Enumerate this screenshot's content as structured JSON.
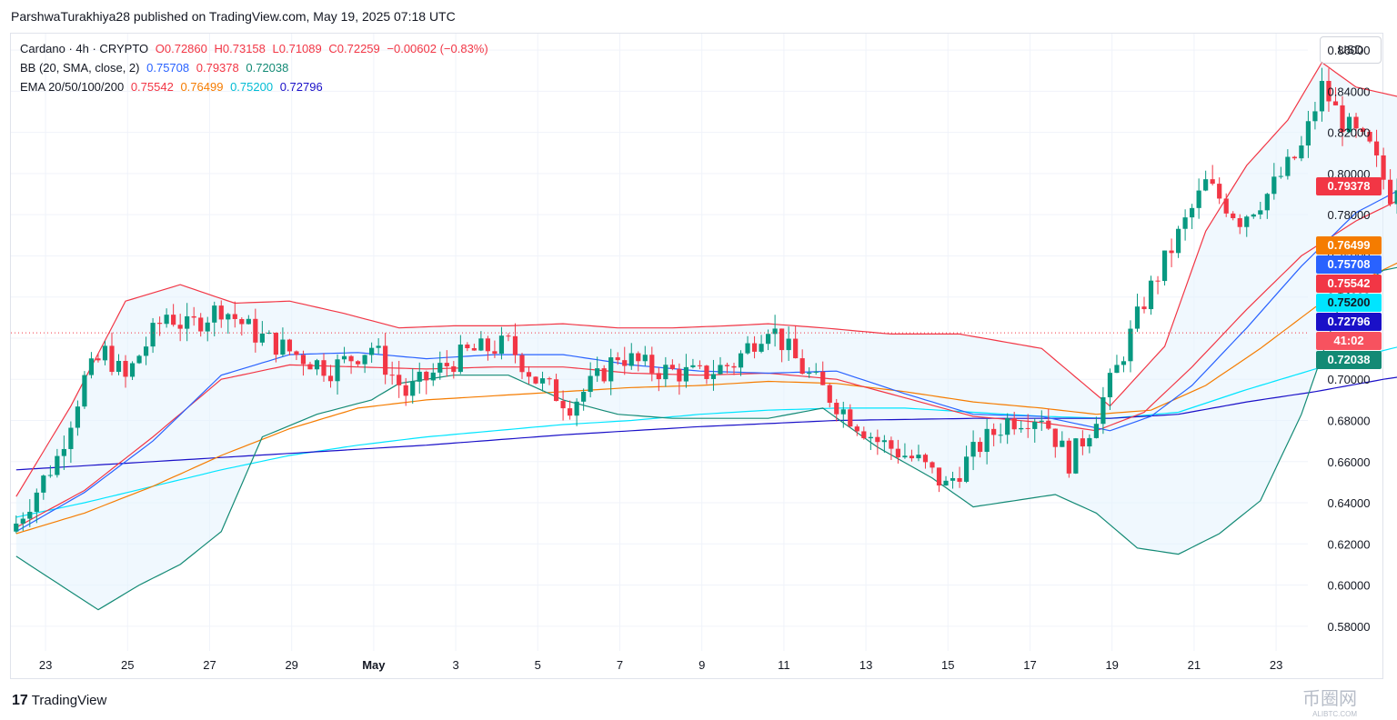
{
  "publisher_line": "ParshwaTurakhiya28 published on TradingView.com, May 19, 2025 07:18 UTC",
  "legend": {
    "symbol": "Cardano · 4h · CRYPTO",
    "open": "O0.72860",
    "high": "H0.73158",
    "low": "L0.71089",
    "close": "C0.72259",
    "change": "−0.00602 (−0.83%)",
    "bb_label": "BB (20, SMA, close, 2)",
    "bb_values": [
      "0.75708",
      "0.79378",
      "0.72038"
    ],
    "ema_label": "EMA 20/50/100/200",
    "ema_values": [
      "0.75542",
      "0.76499",
      "0.75200",
      "0.72796"
    ]
  },
  "currency": "USD",
  "price_labels": [
    {
      "text": "0.79378",
      "value": 0.79378,
      "color": "#f23645"
    },
    {
      "text": "0.76499",
      "value": 0.76499,
      "color": "#f57c00"
    },
    {
      "text": "0.75708",
      "value": 0.75708,
      "color": "#2962ff"
    },
    {
      "text": "0.75542",
      "value": 0.75542,
      "color": "#f23645"
    },
    {
      "text": "0.75200",
      "value": 0.752,
      "color": "#00e5ff"
    },
    {
      "text": "0.72796",
      "value": 0.72796,
      "color": "#1a10c8"
    },
    {
      "text": "41:02",
      "value": 0.72259,
      "color": "#f7525f"
    },
    {
      "text": "0.72038",
      "value": 0.72038,
      "color": "#138a75"
    }
  ],
  "branding": "TradingView",
  "watermark": {
    "text": "币圈网",
    "sub": "ALIBTC.COM"
  },
  "colors": {
    "up": "#089981",
    "down": "#f23645",
    "bb_basis": "#2962ff",
    "bb_upper": "#f23645",
    "bb_lower": "#138a75",
    "ema20": "#f23645",
    "ema50": "#f57c00",
    "ema100": "#00e5ff",
    "ema200": "#1a10c8",
    "grid": "#f0f3fa",
    "band_fill": "#e3f2fd"
  },
  "chart_data": {
    "type": "candlestick",
    "ylim": [
      0.568,
      0.868
    ],
    "y_ticks": [
      "0.86000",
      "0.84000",
      "0.82000",
      "0.80000",
      "0.78000",
      "0.76000",
      "0.74000",
      "0.72000",
      "0.70000",
      "0.68000",
      "0.66000",
      "0.64000",
      "0.62000",
      "0.60000",
      "0.58000"
    ],
    "y_tick_values": [
      0.86,
      0.84,
      0.82,
      0.8,
      0.78,
      0.76,
      0.74,
      0.72,
      0.7,
      0.68,
      0.66,
      0.64,
      0.62,
      0.6,
      0.58
    ],
    "x_ticks": [
      "23",
      "25",
      "27",
      "29",
      "May",
      "3",
      "5",
      "7",
      "9",
      "11",
      "13",
      "15",
      "17",
      "19",
      "21",
      "23"
    ],
    "x_tick_days": [
      -8,
      -6,
      -4,
      -2,
      0,
      2,
      4,
      6,
      8,
      10,
      12,
      14,
      16,
      18,
      20,
      22
    ],
    "x_start_day": -8.8,
    "candles_per_day": 6,
    "current_price": 0.72259,
    "close_path": [
      [
        0,
        0.63
      ],
      [
        6,
        0.662
      ],
      [
        10,
        0.7
      ],
      [
        13,
        0.713
      ],
      [
        16,
        0.7
      ],
      [
        18,
        0.712
      ],
      [
        22,
        0.732
      ],
      [
        25,
        0.725
      ],
      [
        30,
        0.735
      ],
      [
        35,
        0.722
      ],
      [
        41,
        0.712
      ],
      [
        46,
        0.705
      ],
      [
        52,
        0.716
      ],
      [
        57,
        0.693
      ],
      [
        62,
        0.705
      ],
      [
        66,
        0.713
      ],
      [
        72,
        0.717
      ],
      [
        76,
        0.7
      ],
      [
        81,
        0.688
      ],
      [
        85,
        0.7
      ],
      [
        88,
        0.712
      ],
      [
        93,
        0.705
      ],
      [
        100,
        0.702
      ],
      [
        105,
        0.708
      ],
      [
        110,
        0.727
      ],
      [
        115,
        0.705
      ],
      [
        121,
        0.685
      ],
      [
        126,
        0.67
      ],
      [
        132,
        0.66
      ],
      [
        136,
        0.648
      ],
      [
        141,
        0.668
      ],
      [
        145,
        0.68
      ],
      [
        150,
        0.683
      ],
      [
        154,
        0.66
      ],
      [
        157,
        0.676
      ],
      [
        161,
        0.705
      ],
      [
        165,
        0.738
      ],
      [
        170,
        0.77
      ],
      [
        174,
        0.795
      ],
      [
        179,
        0.778
      ],
      [
        183,
        0.79
      ],
      [
        188,
        0.812
      ],
      [
        191,
        0.842
      ],
      [
        194,
        0.825
      ],
      [
        198,
        0.812
      ],
      [
        201,
        0.79
      ],
      [
        205,
        0.815
      ],
      [
        210,
        0.832
      ],
      [
        215,
        0.81
      ],
      [
        219,
        0.78
      ],
      [
        223,
        0.79
      ],
      [
        228,
        0.815
      ],
      [
        231,
        0.832
      ],
      [
        234,
        0.82
      ],
      [
        238,
        0.808
      ],
      [
        243,
        0.79
      ],
      [
        247,
        0.766
      ],
      [
        251,
        0.775
      ],
      [
        254,
        0.756
      ],
      [
        258,
        0.768
      ],
      [
        262,
        0.765
      ],
      [
        267,
        0.76
      ],
      [
        271,
        0.77
      ],
      [
        275,
        0.748
      ],
      [
        279,
        0.74
      ],
      [
        282,
        0.748
      ],
      [
        285,
        0.762
      ],
      [
        288,
        0.745
      ],
      [
        290,
        0.722
      ]
    ],
    "bb_upper": [
      [
        0,
        0.643
      ],
      [
        8,
        0.687
      ],
      [
        16,
        0.738
      ],
      [
        24,
        0.746
      ],
      [
        32,
        0.737
      ],
      [
        40,
        0.738
      ],
      [
        48,
        0.732
      ],
      [
        56,
        0.725
      ],
      [
        64,
        0.726
      ],
      [
        72,
        0.726
      ],
      [
        80,
        0.727
      ],
      [
        88,
        0.725
      ],
      [
        96,
        0.725
      ],
      [
        104,
        0.726
      ],
      [
        110,
        0.727
      ],
      [
        118,
        0.725
      ],
      [
        128,
        0.722
      ],
      [
        138,
        0.722
      ],
      [
        150,
        0.715
      ],
      [
        160,
        0.687
      ],
      [
        168,
        0.716
      ],
      [
        174,
        0.772
      ],
      [
        180,
        0.804
      ],
      [
        186,
        0.826
      ],
      [
        191,
        0.854
      ],
      [
        196,
        0.842
      ],
      [
        204,
        0.836
      ],
      [
        212,
        0.84
      ],
      [
        220,
        0.838
      ],
      [
        228,
        0.835
      ],
      [
        236,
        0.844
      ],
      [
        244,
        0.845
      ],
      [
        252,
        0.842
      ],
      [
        260,
        0.839
      ],
      [
        266,
        0.833
      ],
      [
        272,
        0.818
      ],
      [
        278,
        0.792
      ],
      [
        284,
        0.792
      ],
      [
        290,
        0.794
      ]
    ],
    "bb_lower": [
      [
        0,
        0.614
      ],
      [
        6,
        0.601
      ],
      [
        12,
        0.588
      ],
      [
        18,
        0.6
      ],
      [
        24,
        0.61
      ],
      [
        30,
        0.626
      ],
      [
        36,
        0.672
      ],
      [
        44,
        0.683
      ],
      [
        52,
        0.69
      ],
      [
        56,
        0.698
      ],
      [
        64,
        0.702
      ],
      [
        72,
        0.702
      ],
      [
        80,
        0.69
      ],
      [
        88,
        0.683
      ],
      [
        96,
        0.681
      ],
      [
        104,
        0.681
      ],
      [
        110,
        0.681
      ],
      [
        118,
        0.686
      ],
      [
        126,
        0.667
      ],
      [
        134,
        0.652
      ],
      [
        140,
        0.638
      ],
      [
        146,
        0.641
      ],
      [
        152,
        0.644
      ],
      [
        158,
        0.635
      ],
      [
        164,
        0.618
      ],
      [
        170,
        0.615
      ],
      [
        176,
        0.625
      ],
      [
        182,
        0.641
      ],
      [
        188,
        0.683
      ],
      [
        194,
        0.74
      ],
      [
        200,
        0.753
      ],
      [
        206,
        0.757
      ],
      [
        212,
        0.76
      ],
      [
        218,
        0.763
      ],
      [
        224,
        0.766
      ],
      [
        230,
        0.771
      ],
      [
        236,
        0.773
      ],
      [
        242,
        0.768
      ],
      [
        248,
        0.753
      ],
      [
        256,
        0.75
      ],
      [
        264,
        0.743
      ],
      [
        272,
        0.731
      ],
      [
        280,
        0.739
      ],
      [
        286,
        0.735
      ],
      [
        290,
        0.72
      ]
    ],
    "bb_basis": [
      [
        0,
        0.626
      ],
      [
        10,
        0.645
      ],
      [
        20,
        0.67
      ],
      [
        30,
        0.702
      ],
      [
        40,
        0.712
      ],
      [
        50,
        0.713
      ],
      [
        60,
        0.71
      ],
      [
        70,
        0.712
      ],
      [
        80,
        0.712
      ],
      [
        90,
        0.707
      ],
      [
        100,
        0.704
      ],
      [
        110,
        0.703
      ],
      [
        120,
        0.704
      ],
      [
        130,
        0.693
      ],
      [
        140,
        0.683
      ],
      [
        150,
        0.682
      ],
      [
        160,
        0.675
      ],
      [
        166,
        0.682
      ],
      [
        172,
        0.697
      ],
      [
        180,
        0.725
      ],
      [
        188,
        0.755
      ],
      [
        196,
        0.781
      ],
      [
        204,
        0.795
      ],
      [
        212,
        0.803
      ],
      [
        220,
        0.807
      ],
      [
        228,
        0.808
      ],
      [
        236,
        0.811
      ],
      [
        244,
        0.803
      ],
      [
        252,
        0.793
      ],
      [
        260,
        0.789
      ],
      [
        266,
        0.784
      ],
      [
        272,
        0.774
      ],
      [
        280,
        0.762
      ],
      [
        286,
        0.76
      ],
      [
        290,
        0.757
      ]
    ],
    "ema20": [
      [
        0,
        0.628
      ],
      [
        10,
        0.646
      ],
      [
        20,
        0.672
      ],
      [
        30,
        0.7
      ],
      [
        40,
        0.707
      ],
      [
        50,
        0.706
      ],
      [
        60,
        0.705
      ],
      [
        70,
        0.706
      ],
      [
        80,
        0.706
      ],
      [
        90,
        0.703
      ],
      [
        100,
        0.702
      ],
      [
        110,
        0.703
      ],
      [
        120,
        0.7
      ],
      [
        130,
        0.691
      ],
      [
        140,
        0.682
      ],
      [
        150,
        0.679
      ],
      [
        158,
        0.675
      ],
      [
        165,
        0.684
      ],
      [
        172,
        0.706
      ],
      [
        180,
        0.734
      ],
      [
        188,
        0.76
      ],
      [
        196,
        0.777
      ],
      [
        204,
        0.79
      ],
      [
        212,
        0.8
      ],
      [
        220,
        0.802
      ],
      [
        228,
        0.804
      ],
      [
        236,
        0.806
      ],
      [
        244,
        0.8
      ],
      [
        252,
        0.787
      ],
      [
        260,
        0.78
      ],
      [
        268,
        0.773
      ],
      [
        276,
        0.768
      ],
      [
        284,
        0.761
      ],
      [
        290,
        0.755
      ]
    ],
    "ema50": [
      [
        0,
        0.625
      ],
      [
        10,
        0.635
      ],
      [
        20,
        0.648
      ],
      [
        30,
        0.663
      ],
      [
        40,
        0.676
      ],
      [
        50,
        0.686
      ],
      [
        60,
        0.69
      ],
      [
        70,
        0.692
      ],
      [
        80,
        0.694
      ],
      [
        90,
        0.696
      ],
      [
        100,
        0.697
      ],
      [
        110,
        0.699
      ],
      [
        120,
        0.698
      ],
      [
        130,
        0.694
      ],
      [
        140,
        0.689
      ],
      [
        150,
        0.686
      ],
      [
        158,
        0.683
      ],
      [
        166,
        0.685
      ],
      [
        174,
        0.697
      ],
      [
        182,
        0.715
      ],
      [
        190,
        0.735
      ],
      [
        198,
        0.75
      ],
      [
        206,
        0.763
      ],
      [
        214,
        0.773
      ],
      [
        222,
        0.78
      ],
      [
        230,
        0.787
      ],
      [
        238,
        0.792
      ],
      [
        246,
        0.78
      ],
      [
        254,
        0.778
      ],
      [
        262,
        0.777
      ],
      [
        270,
        0.773
      ],
      [
        278,
        0.77
      ],
      [
        284,
        0.768
      ],
      [
        290,
        0.765
      ]
    ],
    "ema100": [
      [
        0,
        0.633
      ],
      [
        10,
        0.64
      ],
      [
        20,
        0.648
      ],
      [
        30,
        0.656
      ],
      [
        40,
        0.663
      ],
      [
        50,
        0.668
      ],
      [
        60,
        0.672
      ],
      [
        70,
        0.675
      ],
      [
        80,
        0.678
      ],
      [
        90,
        0.68
      ],
      [
        100,
        0.683
      ],
      [
        110,
        0.685
      ],
      [
        120,
        0.686
      ],
      [
        130,
        0.686
      ],
      [
        140,
        0.684
      ],
      [
        150,
        0.682
      ],
      [
        160,
        0.681
      ],
      [
        170,
        0.684
      ],
      [
        180,
        0.695
      ],
      [
        190,
        0.705
      ],
      [
        200,
        0.714
      ],
      [
        210,
        0.722
      ],
      [
        220,
        0.731
      ],
      [
        230,
        0.739
      ],
      [
        240,
        0.745
      ],
      [
        250,
        0.749
      ],
      [
        260,
        0.751
      ],
      [
        270,
        0.753
      ],
      [
        280,
        0.753
      ],
      [
        290,
        0.752
      ]
    ],
    "ema200": [
      [
        0,
        0.656
      ],
      [
        20,
        0.66
      ],
      [
        40,
        0.664
      ],
      [
        60,
        0.668
      ],
      [
        80,
        0.673
      ],
      [
        100,
        0.677
      ],
      [
        120,
        0.68
      ],
      [
        140,
        0.681
      ],
      [
        160,
        0.681
      ],
      [
        170,
        0.683
      ],
      [
        180,
        0.689
      ],
      [
        190,
        0.694
      ],
      [
        200,
        0.7
      ],
      [
        210,
        0.705
      ],
      [
        220,
        0.711
      ],
      [
        230,
        0.716
      ],
      [
        240,
        0.721
      ],
      [
        250,
        0.723
      ],
      [
        260,
        0.726
      ],
      [
        270,
        0.728
      ],
      [
        280,
        0.728
      ],
      [
        290,
        0.728
      ]
    ]
  }
}
